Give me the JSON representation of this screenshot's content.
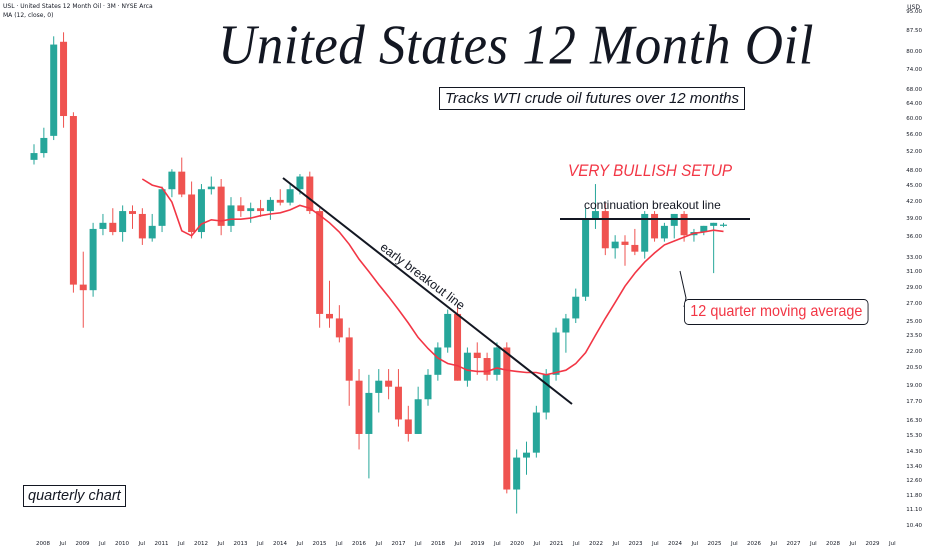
{
  "header": {
    "symbol_line": "USL · United States 12 Month Oil · 3M · NYSE Arca",
    "ma_line": "MA (12, close, 0)",
    "currency": "USD"
  },
  "annotations": {
    "title": "United States 12 Month Oil",
    "subtitle": "Tracks WTI crude oil futures over 12 months",
    "bullish": "VERY BULLISH SETUP",
    "continuation": "continuation breakout line",
    "early": "early breakout line",
    "ma_note": "12 quarter moving average",
    "period_note": "quarterly chart"
  },
  "colors": {
    "up": "#26a69a",
    "down": "#ef5350",
    "ma": "#f23645",
    "lines": "#131722"
  },
  "chart_data": {
    "type": "candlestick",
    "scale": "log",
    "ylim": [
      9.9,
      98
    ],
    "y_ticks": [
      "95.00",
      "87.50",
      "80.00",
      "74.00",
      "68.00",
      "64.00",
      "60.00",
      "56.00",
      "52.00",
      "48.00",
      "45.00",
      "42.00",
      "39.00",
      "36.00",
      "33.00",
      "31.00",
      "29.00",
      "27.00",
      "25.00",
      "23.50",
      "22.00",
      "20.50",
      "19.00",
      "17.70",
      "16.30",
      "15.30",
      "14.30",
      "13.40",
      "12.60",
      "11.80",
      "11.10",
      "10.40"
    ],
    "x_ticks": [
      "2008",
      "Jul",
      "2009",
      "Jul",
      "2010",
      "Jul",
      "2011",
      "Jul",
      "2012",
      "Jul",
      "2013",
      "Jul",
      "2014",
      "Jul",
      "2015",
      "Jul",
      "2016",
      "Jul",
      "2017",
      "Jul",
      "2018",
      "Jul",
      "2019",
      "Jul",
      "2020",
      "Jul",
      "2021",
      "Jul",
      "2022",
      "Jul",
      "2023",
      "Jul",
      "2024",
      "Jul",
      "2025",
      "Jul",
      "2026",
      "Jul",
      "2027",
      "Jul",
      "2028",
      "Jul",
      "2029",
      "Jul"
    ],
    "x_start": "2008 Q1",
    "interval": "quarter",
    "candles": [
      [
        50.5,
        54.0,
        49.5,
        52.0
      ],
      [
        52.0,
        58.0,
        51.0,
        55.5
      ],
      [
        56.0,
        86.0,
        55.0,
        83.0
      ],
      [
        84.0,
        87.5,
        58.0,
        61.0
      ],
      [
        61.0,
        62.0,
        28.5,
        29.5
      ],
      [
        29.5,
        34.0,
        24.5,
        28.8
      ],
      [
        28.8,
        38.5,
        28.0,
        37.5
      ],
      [
        37.5,
        40.0,
        36.5,
        38.5
      ],
      [
        38.5,
        41.0,
        36.5,
        37.0
      ],
      [
        37.0,
        41.5,
        35.5,
        40.5
      ],
      [
        40.5,
        41.5,
        37.5,
        40.0
      ],
      [
        40.0,
        41.0,
        35.0,
        36.0
      ],
      [
        36.0,
        40.0,
        35.5,
        38.0
      ],
      [
        38.0,
        45.0,
        37.0,
        44.5
      ],
      [
        44.5,
        48.5,
        43.0,
        48.0
      ],
      [
        48.0,
        51.0,
        43.0,
        43.5
      ],
      [
        43.5,
        46.0,
        36.0,
        37.0
      ],
      [
        37.0,
        45.5,
        36.0,
        44.5
      ],
      [
        44.5,
        47.0,
        43.5,
        45.0
      ],
      [
        45.0,
        46.5,
        36.5,
        38.0
      ],
      [
        38.0,
        43.0,
        37.0,
        41.5
      ],
      [
        41.5,
        43.0,
        39.5,
        40.5
      ],
      [
        40.5,
        42.0,
        38.5,
        41.0
      ],
      [
        41.0,
        42.5,
        39.5,
        40.5
      ],
      [
        40.5,
        43.0,
        39.0,
        42.5
      ],
      [
        42.5,
        44.5,
        41.5,
        42.0
      ],
      [
        42.0,
        45.5,
        41.5,
        44.5
      ],
      [
        44.5,
        47.5,
        43.5,
        47.0
      ],
      [
        47.0,
        48.0,
        40.0,
        40.5
      ],
      [
        40.5,
        41.0,
        24.5,
        26.0
      ],
      [
        26.0,
        30.0,
        24.5,
        25.5
      ],
      [
        25.5,
        27.0,
        23.0,
        23.5
      ],
      [
        23.5,
        24.5,
        17.5,
        19.5
      ],
      [
        19.5,
        20.5,
        14.5,
        15.5
      ],
      [
        15.5,
        20.0,
        12.8,
        18.5
      ],
      [
        18.5,
        20.5,
        17.0,
        19.5
      ],
      [
        19.5,
        20.5,
        18.0,
        19.0
      ],
      [
        19.0,
        20.5,
        16.0,
        16.5
      ],
      [
        16.5,
        17.5,
        15.0,
        15.5
      ],
      [
        15.5,
        19.0,
        15.5,
        18.0
      ],
      [
        18.0,
        20.5,
        17.5,
        20.0
      ],
      [
        20.0,
        23.0,
        19.5,
        22.5
      ],
      [
        22.5,
        26.5,
        22.0,
        26.0
      ],
      [
        26.0,
        27.0,
        19.5,
        19.5
      ],
      [
        19.5,
        22.5,
        19.0,
        22.0
      ],
      [
        22.0,
        23.0,
        20.0,
        21.5
      ],
      [
        21.5,
        22.0,
        19.5,
        20.0
      ],
      [
        20.0,
        23.0,
        19.5,
        22.5
      ],
      [
        22.5,
        23.0,
        12.0,
        12.2
      ],
      [
        12.2,
        14.5,
        11.0,
        14.0
      ],
      [
        14.0,
        15.0,
        13.0,
        14.3
      ],
      [
        14.3,
        17.5,
        14.0,
        17.0
      ],
      [
        17.0,
        20.5,
        16.5,
        20.0
      ],
      [
        20.0,
        24.5,
        19.5,
        24.0
      ],
      [
        24.0,
        26.0,
        22.0,
        25.5
      ],
      [
        25.5,
        29.0,
        25.0,
        28.0
      ],
      [
        28.0,
        41.0,
        27.5,
        39.0
      ],
      [
        39.0,
        45.5,
        37.5,
        40.5
      ],
      [
        40.5,
        42.0,
        33.5,
        34.5
      ],
      [
        34.5,
        36.5,
        33.0,
        35.5
      ],
      [
        35.5,
        36.5,
        32.0,
        35.0
      ],
      [
        35.0,
        37.5,
        33.5,
        34.0
      ],
      [
        34.0,
        40.5,
        33.0,
        40.0
      ],
      [
        40.0,
        40.5,
        35.5,
        36.0
      ],
      [
        36.0,
        38.5,
        35.5,
        38.0
      ],
      [
        38.0,
        40.0,
        36.0,
        40.0
      ],
      [
        40.0,
        40.5,
        35.5,
        36.5
      ],
      [
        36.5,
        37.5,
        35.5,
        37.0
      ],
      [
        37.0,
        38.0,
        36.5,
        38.0
      ],
      [
        38.0,
        38.5,
        31.0,
        38.5
      ],
      [
        38.0,
        38.5,
        37.8,
        38.2
      ]
    ],
    "moving_average": [
      null,
      null,
      null,
      null,
      null,
      null,
      null,
      null,
      null,
      null,
      null,
      46.5,
      45.3,
      44.8,
      42.1,
      37.2,
      36.4,
      38.3,
      39.0,
      38.8,
      39.1,
      39.1,
      39.3,
      39.7,
      40.0,
      40.2,
      40.7,
      41.5,
      41.0,
      39.8,
      38.5,
      37.0,
      35.1,
      32.9,
      31.2,
      29.5,
      28.0,
      26.5,
      25.0,
      23.5,
      22.4,
      21.5,
      21.0,
      20.8,
      20.4,
      20.3,
      20.3,
      20.6,
      20.4,
      20.3,
      20.2,
      20.2,
      20.0,
      20.2,
      20.4,
      21.0,
      22.0,
      23.7,
      25.5,
      27.3,
      29.3,
      31.0,
      32.5,
      33.8,
      35.0,
      35.6,
      36.2,
      36.8,
      37.0,
      37.3,
      37.1
    ]
  }
}
